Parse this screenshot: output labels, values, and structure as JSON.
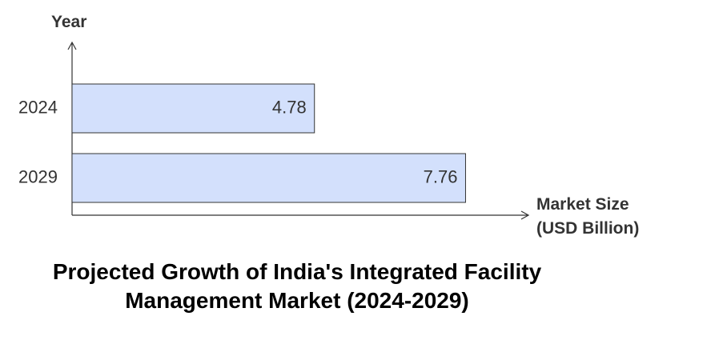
{
  "chart_data": {
    "type": "bar",
    "orientation": "horizontal",
    "title": "Projected Growth of India's Integrated Facility Management Market (2024-2029)",
    "x_label": "Market Size (USD Billion)",
    "y_label": "Year",
    "categories": [
      "2024",
      "2029"
    ],
    "values": [
      4.78,
      7.76
    ],
    "color": "#d3e0fc",
    "xlim": [
      0,
      9
    ]
  }
}
